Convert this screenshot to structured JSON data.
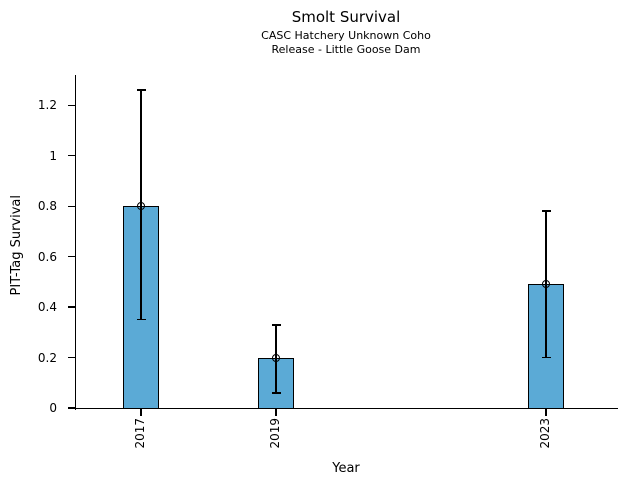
{
  "figure": {
    "background_color": "#ffffff",
    "text_color": "#000000"
  },
  "chart_data": {
    "type": "bar",
    "title": "Smolt Survival",
    "subtitle": [
      "CASC Hatchery Unknown Coho",
      "Release - Little Goose Dam"
    ],
    "xlabel": "Year",
    "ylabel": "PIT-Tag Survival",
    "categories": [
      "2017",
      "2019",
      "2023"
    ],
    "x": [
      2017,
      2019,
      2023
    ],
    "values": [
      0.8,
      0.2,
      0.49
    ],
    "error_low": [
      0.35,
      0.06,
      0.2
    ],
    "error_high": [
      1.26,
      0.33,
      0.78
    ],
    "marker": "open-circle",
    "yticks": [
      0,
      0.2,
      0.4,
      0.6,
      0.8,
      1,
      1.2
    ],
    "ytick_labels": [
      "0",
      "0.2",
      "0.4",
      "0.6",
      "0.8",
      "1",
      "1.2"
    ],
    "xlim": [
      2016.02,
      2024.05
    ],
    "ylim": [
      0,
      1.32
    ],
    "bar_width_years": 0.53,
    "bar_color": "#5BAAD6",
    "edge_color": "#000000",
    "grid": false,
    "legend": null,
    "spines": [
      "left",
      "bottom"
    ]
  }
}
